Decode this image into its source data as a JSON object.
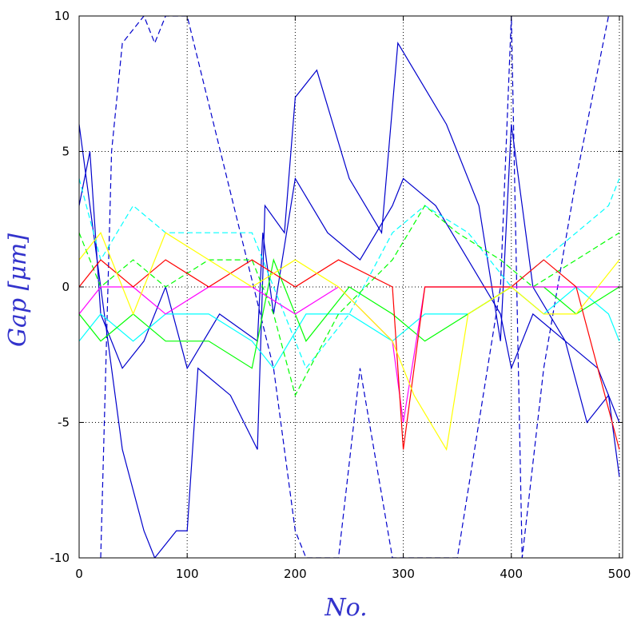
{
  "chart_data": {
    "type": "line",
    "xlabel": "No.",
    "ylabel": "Gap [μm]",
    "xlim": [
      0,
      503
    ],
    "ylim": [
      -10,
      10
    ],
    "x_ticks": [
      0,
      100,
      200,
      300,
      400,
      500
    ],
    "y_ticks": [
      -10,
      -5,
      0,
      5,
      10
    ],
    "x_tick_labels": [
      "0",
      "100",
      "200",
      "300",
      "400",
      "500"
    ],
    "y_tick_labels": [
      "-10",
      "-5",
      "0",
      "5",
      "10"
    ],
    "grid": "dotted",
    "series_colors": [
      "#0000cc",
      "#00ffff",
      "#00ff00",
      "#ff00ff",
      "#ff0000",
      "#ffff00"
    ],
    "shared_x": "integer gap index 0–503",
    "series": [
      {
        "color": "#0000cc",
        "style": "solid",
        "points": [
          [
            0,
            3
          ],
          [
            10,
            5
          ],
          [
            20,
            -1
          ],
          [
            40,
            -3
          ],
          [
            60,
            -2
          ],
          [
            80,
            0
          ],
          [
            100,
            -3
          ],
          [
            130,
            -1
          ],
          [
            165,
            -2
          ],
          [
            170,
            2
          ],
          [
            180,
            -1
          ],
          [
            200,
            4
          ],
          [
            230,
            2
          ],
          [
            260,
            1
          ],
          [
            290,
            3
          ],
          [
            300,
            4
          ],
          [
            330,
            3
          ],
          [
            360,
            1
          ],
          [
            390,
            -1
          ],
          [
            400,
            -3
          ],
          [
            420,
            -1
          ],
          [
            450,
            -2
          ],
          [
            480,
            -3
          ],
          [
            500,
            -5
          ]
        ]
      },
      {
        "color": "#0000cc",
        "style": "solid",
        "points": [
          [
            0,
            6
          ],
          [
            20,
            0
          ],
          [
            40,
            -6
          ],
          [
            60,
            -9
          ],
          [
            70,
            -10
          ],
          [
            90,
            -9
          ],
          [
            100,
            -9
          ],
          [
            110,
            -3
          ],
          [
            140,
            -4
          ],
          [
            165,
            -6
          ],
          [
            172,
            3
          ],
          [
            190,
            2
          ],
          [
            200,
            7
          ],
          [
            220,
            8
          ],
          [
            250,
            4
          ],
          [
            280,
            2
          ],
          [
            295,
            9
          ],
          [
            310,
            8
          ],
          [
            340,
            6
          ],
          [
            370,
            3
          ],
          [
            390,
            -2
          ],
          [
            400,
            6
          ],
          [
            420,
            0
          ],
          [
            450,
            -2
          ],
          [
            470,
            -5
          ],
          [
            490,
            -4
          ],
          [
            500,
            -7
          ]
        ]
      },
      {
        "color": "#0000cc",
        "style": "dashed",
        "points": [
          [
            20,
            -10
          ],
          [
            30,
            5
          ],
          [
            40,
            9
          ],
          [
            60,
            10
          ],
          [
            70,
            9
          ],
          [
            80,
            10
          ],
          [
            100,
            10
          ],
          [
            180,
            -3
          ],
          [
            200,
            -9
          ],
          [
            210,
            -10
          ],
          [
            240,
            -10
          ],
          [
            260,
            -3
          ],
          [
            290,
            -10
          ],
          [
            350,
            -10
          ],
          [
            370,
            -5
          ],
          [
            390,
            0
          ],
          [
            400,
            10
          ],
          [
            410,
            -10
          ],
          [
            430,
            -3
          ],
          [
            460,
            4
          ],
          [
            490,
            10
          ]
        ]
      },
      {
        "color": "#00ffff",
        "style": "dashed",
        "points": [
          [
            0,
            4
          ],
          [
            20,
            1
          ],
          [
            50,
            3
          ],
          [
            80,
            2
          ],
          [
            120,
            2
          ],
          [
            160,
            2
          ],
          [
            180,
            0
          ],
          [
            210,
            -3
          ],
          [
            250,
            -1
          ],
          [
            290,
            2
          ],
          [
            320,
            3
          ],
          [
            360,
            2
          ],
          [
            400,
            0
          ],
          [
            430,
            1
          ],
          [
            460,
            2
          ],
          [
            490,
            3
          ],
          [
            500,
            4
          ]
        ]
      },
      {
        "color": "#00ffff",
        "style": "solid",
        "points": [
          [
            0,
            -2
          ],
          [
            20,
            -1
          ],
          [
            50,
            -2
          ],
          [
            80,
            -1
          ],
          [
            120,
            -1
          ],
          [
            160,
            -2
          ],
          [
            180,
            -3
          ],
          [
            210,
            -1
          ],
          [
            250,
            -1
          ],
          [
            290,
            -2
          ],
          [
            320,
            -1
          ],
          [
            360,
            -1
          ],
          [
            400,
            0
          ],
          [
            430,
            -1
          ],
          [
            460,
            0
          ],
          [
            490,
            -1
          ],
          [
            500,
            -2
          ]
        ]
      },
      {
        "color": "#00ff00",
        "style": "dashed",
        "points": [
          [
            0,
            2
          ],
          [
            20,
            0
          ],
          [
            50,
            1
          ],
          [
            80,
            0
          ],
          [
            120,
            1
          ],
          [
            160,
            1
          ],
          [
            180,
            -1
          ],
          [
            200,
            -4
          ],
          [
            240,
            -1
          ],
          [
            290,
            1
          ],
          [
            320,
            3
          ],
          [
            350,
            2
          ],
          [
            390,
            1
          ],
          [
            420,
            0
          ],
          [
            460,
            1
          ],
          [
            500,
            2
          ]
        ]
      },
      {
        "color": "#00ff00",
        "style": "solid",
        "points": [
          [
            0,
            -1
          ],
          [
            20,
            -2
          ],
          [
            50,
            -1
          ],
          [
            80,
            -2
          ],
          [
            120,
            -2
          ],
          [
            160,
            -3
          ],
          [
            180,
            1
          ],
          [
            210,
            -2
          ],
          [
            250,
            0
          ],
          [
            290,
            -1
          ],
          [
            320,
            -2
          ],
          [
            360,
            -1
          ],
          [
            400,
            0
          ],
          [
            430,
            0
          ],
          [
            460,
            -1
          ],
          [
            500,
            0
          ]
        ]
      },
      {
        "color": "#ff00ff",
        "style": "solid",
        "points": [
          [
            0,
            -1
          ],
          [
            20,
            0
          ],
          [
            50,
            0
          ],
          [
            80,
            -1
          ],
          [
            120,
            0
          ],
          [
            160,
            0
          ],
          [
            200,
            -1
          ],
          [
            240,
            0
          ],
          [
            290,
            -2
          ],
          [
            300,
            -5
          ],
          [
            320,
            0
          ],
          [
            360,
            0
          ],
          [
            400,
            0
          ],
          [
            430,
            0
          ],
          [
            460,
            0
          ],
          [
            500,
            0
          ]
        ]
      },
      {
        "color": "#ff0000",
        "style": "solid",
        "points": [
          [
            0,
            0
          ],
          [
            20,
            1
          ],
          [
            50,
            0
          ],
          [
            80,
            1
          ],
          [
            120,
            0
          ],
          [
            160,
            1
          ],
          [
            200,
            0
          ],
          [
            240,
            1
          ],
          [
            290,
            0
          ],
          [
            300,
            -6
          ],
          [
            320,
            0
          ],
          [
            360,
            0
          ],
          [
            400,
            0
          ],
          [
            430,
            1
          ],
          [
            460,
            0
          ],
          [
            500,
            -6
          ]
        ]
      },
      {
        "color": "#ffff00",
        "style": "solid",
        "points": [
          [
            0,
            1
          ],
          [
            20,
            2
          ],
          [
            50,
            -1
          ],
          [
            80,
            2
          ],
          [
            120,
            1
          ],
          [
            160,
            0
          ],
          [
            200,
            1
          ],
          [
            240,
            0
          ],
          [
            290,
            -2
          ],
          [
            310,
            -4
          ],
          [
            340,
            -6
          ],
          [
            360,
            -1
          ],
          [
            400,
            0
          ],
          [
            430,
            -1
          ],
          [
            460,
            -1
          ],
          [
            500,
            1
          ]
        ]
      }
    ]
  }
}
